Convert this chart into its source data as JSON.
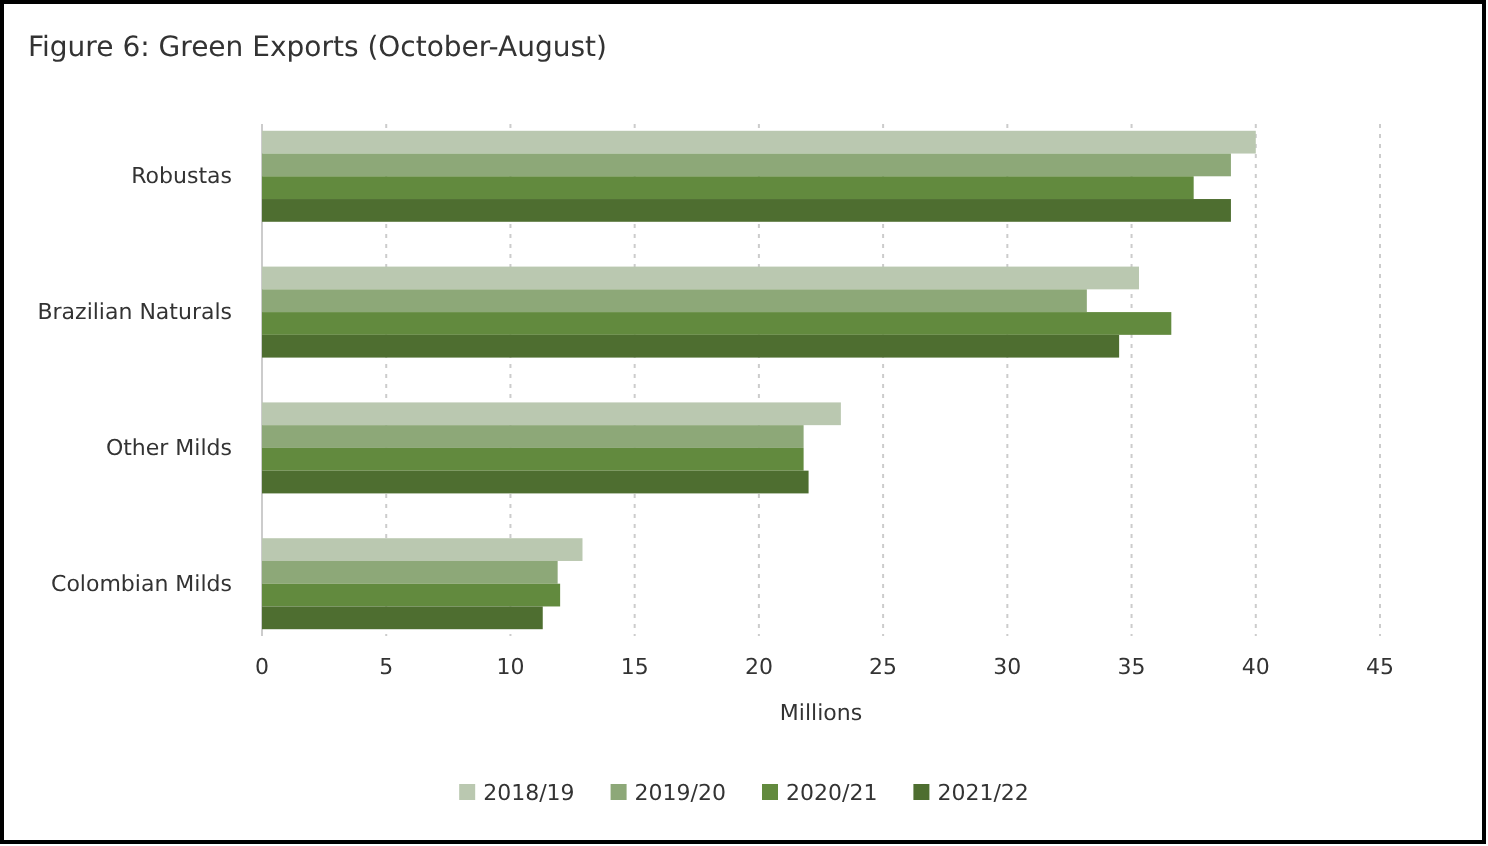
{
  "chart_data": {
    "type": "bar",
    "orientation": "horizontal",
    "title": "Figure 6: Green Exports (October-August)",
    "xlabel": "Millions",
    "categories": [
      "Robustas",
      "Brazilian Naturals",
      "Other Milds",
      "Colombian Milds"
    ],
    "series": [
      {
        "name": "2018/19",
        "color": "#bac8b0",
        "values": [
          40.0,
          35.3,
          23.3,
          12.9
        ]
      },
      {
        "name": "2019/20",
        "color": "#8da878",
        "values": [
          39.0,
          33.2,
          21.8,
          11.9
        ]
      },
      {
        "name": "2020/21",
        "color": "#628a3e",
        "values": [
          37.5,
          36.6,
          21.8,
          12.0
        ]
      },
      {
        "name": "2021/22",
        "color": "#4e6e30",
        "values": [
          39.0,
          34.5,
          22.0,
          11.3
        ]
      }
    ],
    "xlim": [
      0,
      45
    ],
    "xticks": [
      0,
      5,
      10,
      15,
      20,
      25,
      30,
      35,
      40,
      45
    ],
    "grid": "x",
    "legend": "bottom"
  }
}
